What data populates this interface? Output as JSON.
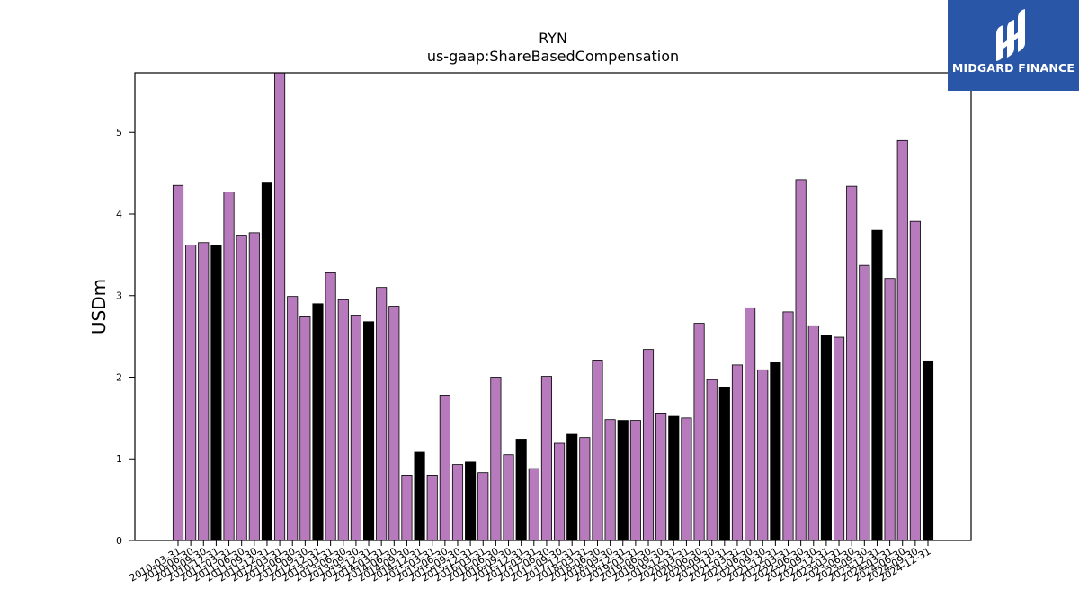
{
  "chart_data": {
    "type": "bar",
    "title": "RYN",
    "subtitle": "us-gaap:ShareBasedCompensation",
    "xlabel": "",
    "ylabel": "USDm",
    "ylim": [
      0,
      5.73
    ],
    "yticks": [
      0,
      1,
      2,
      3,
      4,
      5
    ],
    "colors": {
      "bar_default": "#b77bbd",
      "bar_highlight": "#000000",
      "edge": "#000000"
    },
    "categories": [
      "2010-03-31",
      "2010-06-30",
      "2010-09-30",
      "2010-12-31",
      "2011-03-31",
      "2011-06-30",
      "2011-09-30",
      "2011-12-31",
      "2012-03-31",
      "2012-06-30",
      "2012-09-30",
      "2012-12-31",
      "2013-03-31",
      "2013-06-30",
      "2013-09-30",
      "2013-12-31",
      "2014-03-31",
      "2014-06-30",
      "2014-09-30",
      "2014-12-31",
      "2015-03-31",
      "2015-06-30",
      "2015-09-30",
      "2015-12-31",
      "2016-03-31",
      "2016-06-30",
      "2016-09-30",
      "2016-12-31",
      "2017-03-31",
      "2017-06-30",
      "2017-09-30",
      "2017-12-31",
      "2018-03-31",
      "2018-06-30",
      "2018-09-30",
      "2018-12-31",
      "2019-03-31",
      "2019-06-30",
      "2019-09-30",
      "2019-12-31",
      "2020-03-31",
      "2020-06-30",
      "2020-09-30",
      "2020-12-31",
      "2021-03-31",
      "2021-06-30",
      "2021-09-30",
      "2021-12-31",
      "2022-03-31",
      "2022-06-30",
      "2022-09-30",
      "2022-12-31",
      "2023-03-31",
      "2023-06-30",
      "2023-09-30",
      "2023-12-31",
      "2024-03-31",
      "2024-06-30",
      "2024-09-30",
      "2024-12-31"
    ],
    "values": [
      4.35,
      3.62,
      3.65,
      3.61,
      4.27,
      3.74,
      3.77,
      4.39,
      5.73,
      2.99,
      2.75,
      2.9,
      3.28,
      2.95,
      2.76,
      2.68,
      3.1,
      2.87,
      0.8,
      1.08,
      0.8,
      1.78,
      0.93,
      0.96,
      0.83,
      2.0,
      1.05,
      1.24,
      0.88,
      2.01,
      1.19,
      1.3,
      1.26,
      2.21,
      1.48,
      1.47,
      1.47,
      2.34,
      1.56,
      1.52,
      1.5,
      2.66,
      1.97,
      1.88,
      2.15,
      2.85,
      2.09,
      2.18,
      2.8,
      4.42,
      2.63,
      2.51,
      2.49,
      4.34,
      3.37,
      3.8,
      3.21,
      4.9,
      3.91,
      2.2
    ],
    "highlight": [
      false,
      false,
      false,
      true,
      false,
      false,
      false,
      true,
      false,
      false,
      false,
      true,
      false,
      false,
      false,
      true,
      false,
      false,
      false,
      true,
      false,
      false,
      false,
      true,
      false,
      false,
      false,
      true,
      false,
      false,
      false,
      true,
      false,
      false,
      false,
      true,
      false,
      false,
      false,
      true,
      false,
      false,
      false,
      true,
      false,
      false,
      false,
      true,
      false,
      false,
      false,
      true,
      false,
      false,
      false,
      true,
      false,
      false,
      false,
      true
    ]
  },
  "logo": {
    "text": "MIDGARD FINANCE"
  }
}
